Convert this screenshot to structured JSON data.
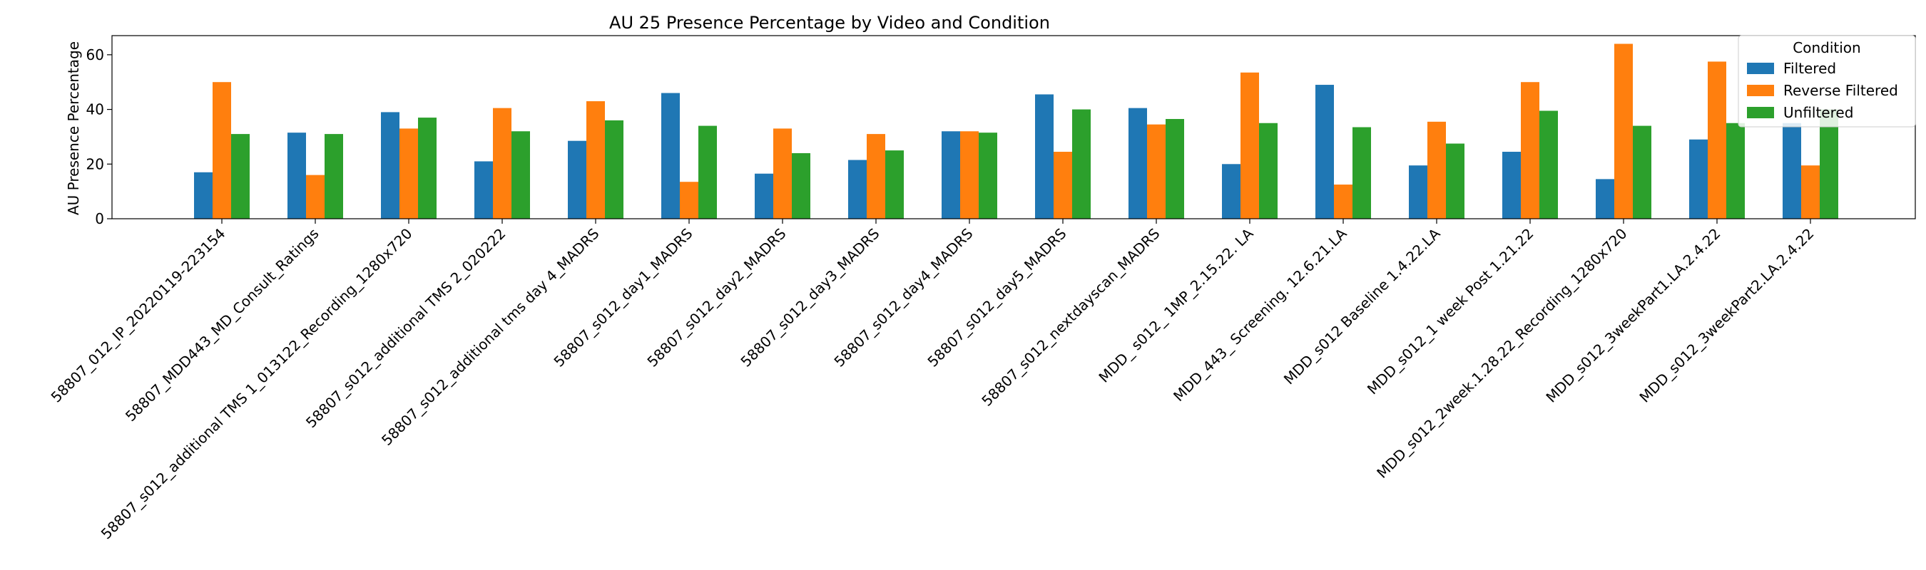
{
  "chart_data": {
    "type": "bar",
    "title": "AU 25 Presence Percentage by Video and Condition",
    "xlabel": "",
    "ylabel": "AU Presence Percentage",
    "ylim": [
      0,
      67
    ],
    "yticks": [
      0,
      20,
      40,
      60
    ],
    "grid": false,
    "legend": {
      "title": "Condition",
      "placement": "top-right"
    },
    "categories": [
      "58807_012_IP_20220119-223154",
      "58807_MDD443_MD_Consult_Ratings",
      "58807_s012_additional TMS 1_013122_Recording_1280x720",
      "58807_s012_additional TMS 2_020222",
      "58807_s012_additional tms day 4_MADRS",
      "58807_s012_day1_MADRS",
      "58807_s012_day2_MADRS",
      "58807_s012_day3_MADRS",
      "58807_s012_day4_MADRS",
      "58807_s012_day5_MADRS",
      "58807_s012_nextdayscan_MADRS",
      "MDD_ s012_ 1MP_2.15.22. LA",
      "MDD_443_ Screening. 12.6.21.LA",
      "MDD_s012 Baseline 1.4.22.LA",
      "MDD_s012_1 week Post 1.21.22",
      "MDD_s012_2week.1.28.22_Recording_1280x720",
      "MDD_s012_3weekPart1.LA.2.4.22",
      "MDD_s012_3weekPart2.LA.2.4.22"
    ],
    "series": [
      {
        "name": "Filtered",
        "color": "#1f77b4",
        "values": [
          17,
          31.5,
          39,
          21,
          28.5,
          46,
          16.5,
          21.5,
          32,
          45.5,
          40.5,
          20,
          49,
          19.5,
          24.5,
          14.5,
          29,
          35
        ]
      },
      {
        "name": "Reverse Filtered",
        "color": "#ff7f0e",
        "values": [
          50,
          16,
          33,
          40.5,
          43,
          13.5,
          33,
          31,
          32,
          24.5,
          34.5,
          53.5,
          12.5,
          35.5,
          50,
          64,
          57.5,
          19.5
        ]
      },
      {
        "name": "Unfiltered",
        "color": "#2ca02c",
        "values": [
          31,
          31,
          37,
          32,
          36,
          34,
          24,
          25,
          31.5,
          40,
          36.5,
          35,
          33.5,
          27.5,
          39.5,
          34,
          35,
          40
        ]
      }
    ]
  }
}
